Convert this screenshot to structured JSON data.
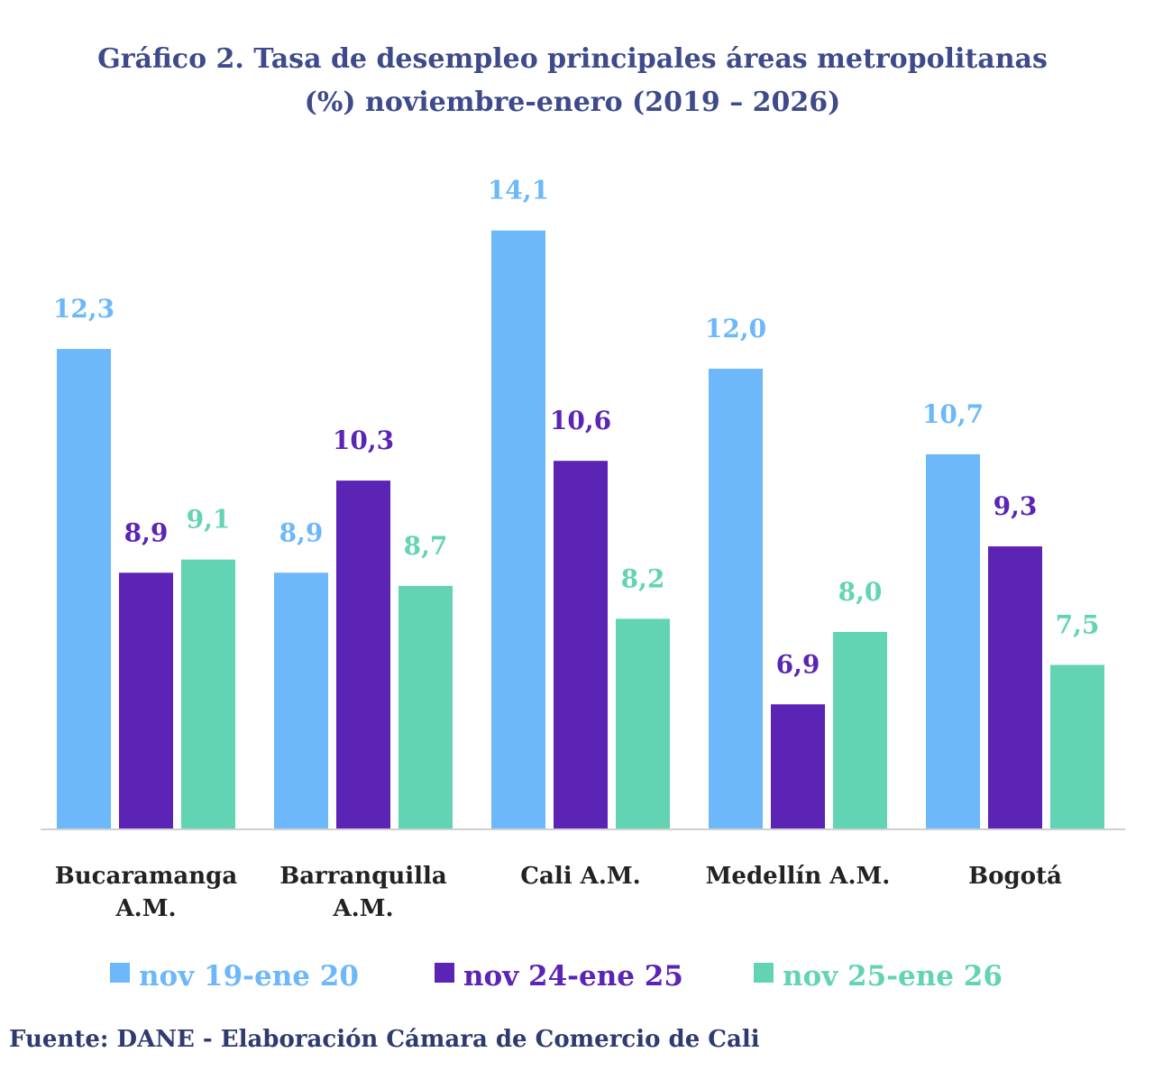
{
  "chart_data": {
    "type": "bar",
    "title_line1": "Gráfico 2. Tasa de desempleo principales áreas metropolitanas",
    "title_line2": "(%) noviembre-enero (2019 – 2026)",
    "categories": [
      [
        "Bucaramanga",
        "A.M."
      ],
      [
        "Barranquilla",
        "A.M."
      ],
      [
        "Cali A.M."
      ],
      [
        "Medellín A.M."
      ],
      [
        "Bogotá"
      ]
    ],
    "series": [
      {
        "name": "nov 19-ene 20",
        "color": "#6cb8fa",
        "values": [
          12.3,
          8.9,
          14.1,
          12.0,
          10.7
        ],
        "labels": [
          "12,3",
          "8,9",
          "14,1",
          "12,0",
          "10,7"
        ]
      },
      {
        "name": "nov 24-ene 25",
        "color": "#5b24b4",
        "values": [
          8.9,
          10.3,
          10.6,
          6.9,
          9.3
        ],
        "labels": [
          "8,9",
          "10,3",
          "10,6",
          "6,9",
          "9,3"
        ]
      },
      {
        "name": "nov 25-ene 26",
        "color": "#63d4b3",
        "values": [
          9.1,
          8.7,
          8.2,
          8.0,
          7.5
        ],
        "labels": [
          "9,1",
          "8,7",
          "8,2",
          "8,0",
          "7,5"
        ]
      }
    ],
    "ylim": [
      5,
      15
    ],
    "grid": false,
    "legend": "bottom",
    "source": "Fuente: DANE - Elaboración Cámara de Comercio de Cali"
  }
}
